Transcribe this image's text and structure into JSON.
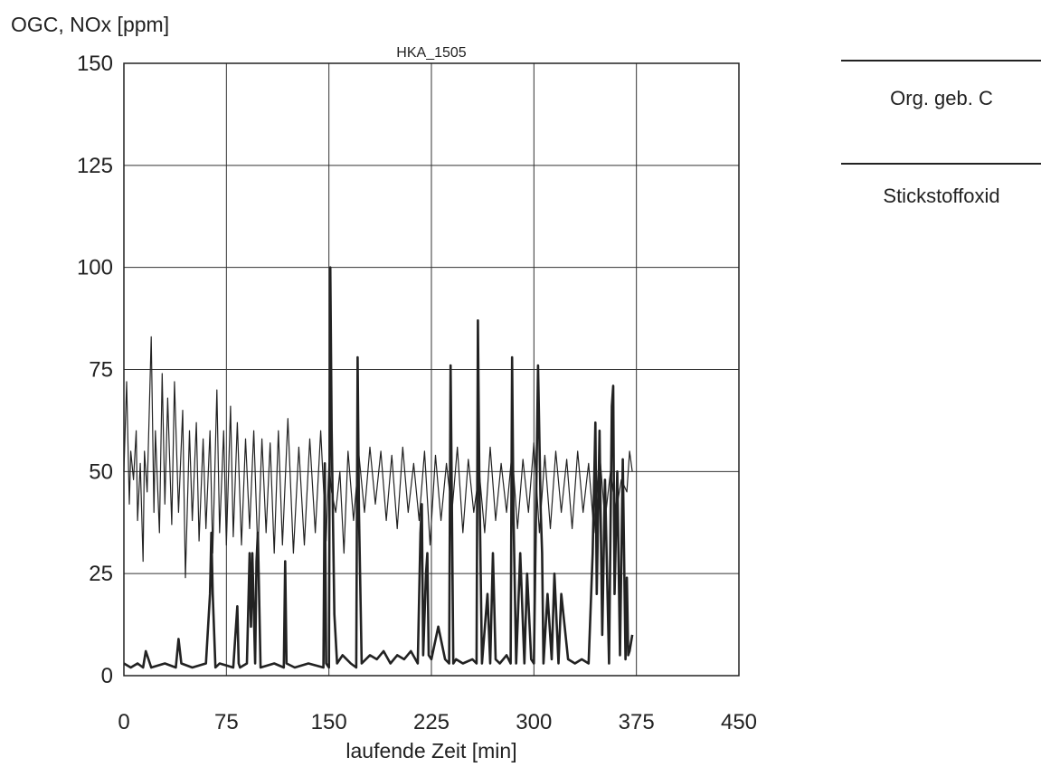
{
  "chart_data": {
    "type": "line",
    "title": "HKA_1505",
    "ylabel": "OGC, NOx [ppm]",
    "xlabel": "laufende Zeit [min]",
    "xlim": [
      0,
      450
    ],
    "ylim": [
      0,
      150
    ],
    "xticks": [
      0,
      75,
      150,
      225,
      300,
      375,
      450
    ],
    "yticks": [
      0,
      25,
      50,
      75,
      100,
      125,
      150
    ],
    "grid": true,
    "legend_position": "right",
    "line_color": "#222222",
    "series": [
      {
        "name": "Org. geb. C",
        "x": [
          0,
          2,
          4,
          5,
          7,
          9,
          10,
          12,
          14,
          15,
          17,
          20,
          22,
          23,
          26,
          28,
          30,
          32,
          35,
          37,
          40,
          43,
          45,
          48,
          50,
          53,
          55,
          58,
          60,
          63,
          65,
          68,
          70,
          73,
          75,
          78,
          80,
          83,
          86,
          89,
          92,
          95,
          98,
          101,
          104,
          107,
          110,
          113,
          116,
          120,
          124,
          128,
          132,
          136,
          140,
          144,
          148,
          150,
          152,
          155,
          158,
          161,
          164,
          168,
          172,
          176,
          180,
          184,
          188,
          192,
          196,
          200,
          204,
          208,
          212,
          216,
          220,
          224,
          228,
          232,
          236,
          240,
          244,
          248,
          252,
          256,
          260,
          264,
          268,
          272,
          276,
          280,
          284,
          288,
          292,
          296,
          300,
          304,
          308,
          312,
          316,
          320,
          324,
          328,
          332,
          336,
          340,
          344,
          348,
          352,
          356,
          360,
          364,
          368,
          370,
          372
        ],
        "values": [
          50,
          72,
          42,
          55,
          48,
          60,
          38,
          52,
          28,
          55,
          45,
          83,
          40,
          60,
          35,
          74,
          42,
          68,
          37,
          72,
          40,
          65,
          24,
          60,
          38,
          62,
          33,
          58,
          36,
          60,
          30,
          70,
          35,
          60,
          32,
          66,
          34,
          62,
          32,
          58,
          36,
          60,
          30,
          58,
          35,
          57,
          30,
          60,
          32,
          63,
          30,
          56,
          32,
          58,
          35,
          60,
          33,
          52,
          45,
          40,
          50,
          30,
          55,
          38,
          54,
          40,
          56,
          42,
          55,
          38,
          54,
          36,
          56,
          40,
          52,
          38,
          55,
          32,
          54,
          38,
          52,
          40,
          56,
          35,
          53,
          40,
          50,
          35,
          56,
          38,
          52,
          40,
          55,
          36,
          53,
          40,
          57,
          35,
          54,
          36,
          55,
          40,
          53,
          36,
          55,
          40,
          52,
          35,
          55,
          38,
          50,
          40,
          48,
          45,
          55,
          50
        ]
      },
      {
        "name": "Stickstoffoxid",
        "x": [
          0,
          5,
          10,
          14,
          16,
          20,
          30,
          38,
          40,
          42,
          50,
          60,
          63,
          64,
          65,
          67,
          70,
          80,
          83,
          84,
          85,
          90,
          92,
          93,
          94,
          96,
          97,
          98,
          100,
          110,
          117,
          118,
          119,
          125,
          135,
          146,
          147,
          148,
          150,
          151,
          152,
          154,
          156,
          160,
          166,
          170,
          171,
          172,
          174,
          180,
          185,
          190,
          195,
          200,
          205,
          210,
          215,
          217,
          218,
          219,
          221,
          222,
          223,
          225,
          230,
          235,
          238,
          239,
          240,
          241,
          243,
          248,
          255,
          258,
          259,
          260,
          262,
          266,
          268,
          270,
          272,
          275,
          280,
          283,
          284,
          285,
          287,
          290,
          293,
          295,
          298,
          300,
          303,
          305,
          306,
          307,
          310,
          313,
          315,
          318,
          320,
          325,
          330,
          335,
          340,
          343,
          345,
          346,
          348,
          350,
          352,
          355,
          357,
          358,
          359,
          361,
          363,
          365,
          367,
          368,
          369,
          370,
          372
        ],
        "values": [
          3,
          2,
          3,
          2,
          6,
          2,
          3,
          2,
          9,
          3,
          2,
          3,
          20,
          35,
          20,
          2,
          3,
          2,
          17,
          3,
          2,
          3,
          30,
          12,
          30,
          3,
          28,
          35,
          2,
          3,
          2,
          28,
          3,
          2,
          3,
          2,
          52,
          3,
          2,
          100,
          60,
          15,
          3,
          5,
          3,
          2,
          78,
          40,
          3,
          5,
          4,
          6,
          3,
          5,
          4,
          6,
          3,
          35,
          42,
          5,
          25,
          30,
          5,
          4,
          12,
          4,
          3,
          76,
          40,
          3,
          4,
          3,
          4,
          3,
          87,
          50,
          3,
          20,
          3,
          30,
          4,
          3,
          5,
          3,
          78,
          40,
          3,
          30,
          3,
          25,
          4,
          3,
          76,
          40,
          30,
          3,
          20,
          4,
          25,
          3,
          20,
          4,
          3,
          4,
          3,
          30,
          62,
          20,
          60,
          10,
          48,
          3,
          66,
          71,
          20,
          50,
          5,
          53,
          4,
          24,
          5,
          6,
          10
        ]
      }
    ]
  }
}
